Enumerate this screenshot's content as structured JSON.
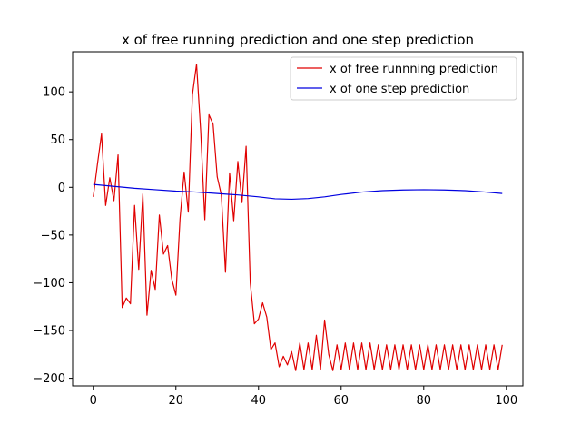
{
  "chart_data": {
    "type": "line",
    "title": "x of free running prediction and one step prediction",
    "xlabel": "",
    "ylabel": "",
    "xlim": [
      -5,
      104
    ],
    "ylim": [
      -208,
      142
    ],
    "xticks": [
      0,
      20,
      40,
      60,
      80,
      100
    ],
    "yticks": [
      -200,
      -150,
      -100,
      -50,
      0,
      50,
      100
    ],
    "xtick_labels": [
      "0",
      "20",
      "40",
      "60",
      "80",
      "100"
    ],
    "ytick_labels": [
      "−200",
      "−150",
      "−100",
      "−50",
      "0",
      "50",
      "100"
    ],
    "grid": false,
    "legend_position": "upper right",
    "series": [
      {
        "name": "x of free runnning prediction",
        "color": "#e00000",
        "x": [
          0,
          1,
          2,
          3,
          4,
          5,
          6,
          7,
          8,
          9,
          10,
          11,
          12,
          13,
          14,
          15,
          16,
          17,
          18,
          19,
          20,
          21,
          22,
          23,
          24,
          25,
          26,
          27,
          28,
          29,
          30,
          31,
          32,
          33,
          34,
          35,
          36,
          37,
          38,
          39,
          40,
          41,
          42,
          43,
          44,
          45,
          46,
          47,
          48,
          49,
          50,
          51,
          52,
          53,
          54,
          55,
          56,
          57,
          58,
          59,
          60,
          61,
          62,
          63,
          64,
          65,
          66,
          67,
          68,
          69,
          70,
          71,
          72,
          73,
          74,
          75,
          76,
          77,
          78,
          79,
          80,
          81,
          82,
          83,
          84,
          85,
          86,
          87,
          88,
          89,
          90,
          91,
          92,
          93,
          94,
          95,
          96,
          97,
          98,
          99
        ],
        "values": [
          -10,
          24,
          56,
          -19,
          10,
          -14,
          34,
          -126,
          -116,
          -122,
          -19,
          -86,
          -7,
          -134,
          -87,
          -107,
          -29,
          -70,
          -61,
          -96,
          -113,
          -33,
          16,
          -26,
          97,
          129,
          59,
          -34,
          76,
          66,
          11,
          -8,
          -89,
          15,
          -35,
          27,
          -16,
          43,
          -100,
          -143,
          -138,
          -121,
          -136,
          -170,
          -163,
          -188,
          -177,
          -186,
          -172,
          -192,
          -163,
          -191,
          -163,
          -191,
          -155,
          -191,
          -139,
          -175,
          -192,
          -165,
          -191,
          -163,
          -191,
          -163,
          -191,
          -163,
          -191,
          -163,
          -191,
          -165,
          -191,
          -165,
          -191,
          -165,
          -191,
          -165,
          -191,
          -165,
          -191,
          -165,
          -191,
          -165,
          -191,
          -165,
          -191,
          -165,
          -191,
          -165,
          -191,
          -165,
          -191,
          -165,
          -191,
          -165,
          -191,
          -165,
          -191,
          -165,
          -191,
          -165
        ]
      },
      {
        "name": "x of one step prediction",
        "color": "#0000e0",
        "x": [
          0,
          5,
          10,
          15,
          20,
          25,
          30,
          35,
          40,
          44,
          48,
          52,
          56,
          60,
          65,
          70,
          75,
          80,
          85,
          90,
          95,
          99
        ],
        "values": [
          3,
          1,
          -1,
          -2.5,
          -4,
          -5,
          -6.5,
          -8,
          -10,
          -12,
          -12.5,
          -11.8,
          -10,
          -7.5,
          -5,
          -3.5,
          -2.8,
          -2.5,
          -2.8,
          -3.5,
          -5,
          -6.5
        ]
      }
    ]
  }
}
